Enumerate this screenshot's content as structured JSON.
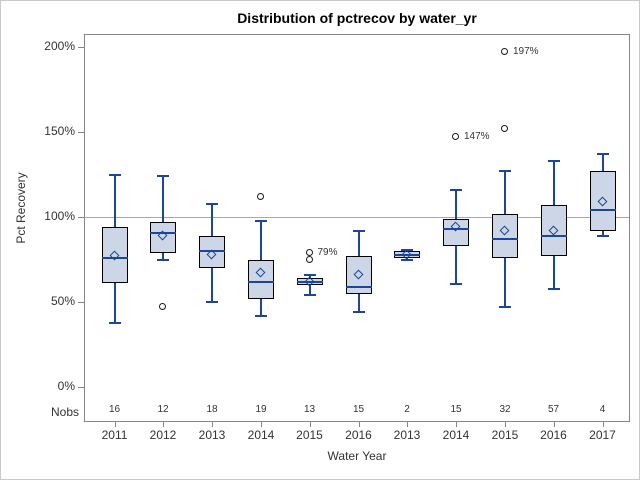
{
  "chart_data": {
    "type": "boxplot",
    "title": "Distribution of pctrecov by water_yr",
    "xlabel": "Water Year",
    "ylabel": "Pct Recovery",
    "nobs_label": "Nobs",
    "ylim": [
      0,
      200
    ],
    "y_ticks": [
      {
        "value": 0,
        "label": "0%"
      },
      {
        "value": 50,
        "label": "50%"
      },
      {
        "value": 100,
        "label": "100%"
      },
      {
        "value": 150,
        "label": "150%"
      },
      {
        "value": 200,
        "label": "200%"
      }
    ],
    "reference_line_value": 100,
    "grid": false,
    "legend": false,
    "categories": [
      "2011",
      "2012",
      "2013",
      "2014",
      "2015",
      "2016",
      "2013",
      "2014",
      "2015",
      "2016",
      "2017"
    ],
    "nobs": [
      16,
      12,
      18,
      19,
      13,
      15,
      2,
      15,
      32,
      57,
      4
    ],
    "series": [
      {
        "water_year": "2011",
        "nobs": 16,
        "whisker_low": 38,
        "q1": 61,
        "median": 76,
        "q3": 94,
        "whisker_high": 125,
        "mean": 77,
        "outliers": []
      },
      {
        "water_year": "2012",
        "nobs": 12,
        "whisker_low": 75,
        "q1": 79,
        "median": 91,
        "q3": 97,
        "whisker_high": 124,
        "mean": 89,
        "outliers": [
          {
            "value": 47
          }
        ]
      },
      {
        "water_year": "2013",
        "nobs": 18,
        "whisker_low": 50,
        "q1": 70,
        "median": 80,
        "q3": 89,
        "whisker_high": 108,
        "mean": 78,
        "outliers": []
      },
      {
        "water_year": "2014",
        "nobs": 19,
        "whisker_low": 42,
        "q1": 52,
        "median": 62,
        "q3": 75,
        "whisker_high": 98,
        "mean": 67,
        "outliers": [
          {
            "value": 112
          }
        ]
      },
      {
        "water_year": "2015",
        "nobs": 13,
        "whisker_low": 54,
        "q1": 60,
        "median": 62,
        "q3": 64,
        "whisker_high": 66,
        "mean": 62,
        "outliers": [
          {
            "value": 75
          },
          {
            "value": 79,
            "label": "79%"
          }
        ]
      },
      {
        "water_year": "2016",
        "nobs": 15,
        "whisker_low": 44,
        "q1": 55,
        "median": 59,
        "q3": 77,
        "whisker_high": 92,
        "mean": 66,
        "outliers": []
      },
      {
        "water_year": "2013",
        "nobs": 2,
        "whisker_low": 75,
        "q1": 76,
        "median": 78,
        "q3": 80,
        "whisker_high": 81,
        "mean": 78,
        "outliers": []
      },
      {
        "water_year": "2014",
        "nobs": 15,
        "whisker_low": 61,
        "q1": 83,
        "median": 93,
        "q3": 99,
        "whisker_high": 116,
        "mean": 94,
        "outliers": [
          {
            "value": 147,
            "label": "147%"
          }
        ]
      },
      {
        "water_year": "2015",
        "nobs": 32,
        "whisker_low": 47,
        "q1": 76,
        "median": 87,
        "q3": 102,
        "whisker_high": 127,
        "mean": 92,
        "outliers": [
          {
            "value": 152
          },
          {
            "value": 197,
            "label": "197%"
          }
        ]
      },
      {
        "water_year": "2016",
        "nobs": 57,
        "whisker_low": 58,
        "q1": 77,
        "median": 89,
        "q3": 107,
        "whisker_high": 133,
        "mean": 92,
        "outliers": []
      },
      {
        "water_year": "2017",
        "nobs": 4,
        "whisker_low": 89,
        "q1": 92,
        "median": 104,
        "q3": 127,
        "whisker_high": 137,
        "mean": 109,
        "outliers": []
      }
    ]
  },
  "colors": {
    "box_fill": "#cdd6e7",
    "box_border": "#000000",
    "whisker_line": "#1b4699",
    "outlier_ring": "#1a1a1a",
    "reference_line": "#a9a9a9",
    "axis_line": "#868686",
    "text": "#333333",
    "background": "#ffffff"
  }
}
